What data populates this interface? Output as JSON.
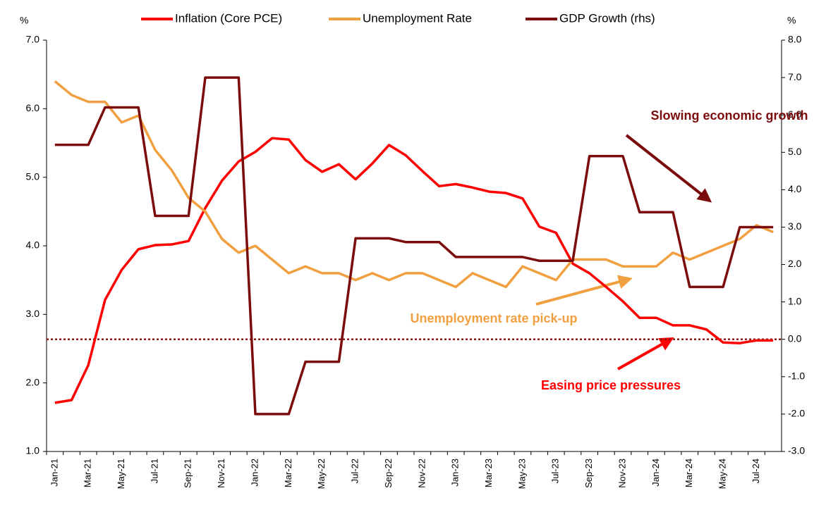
{
  "chart_data": {
    "type": "line",
    "ylabel": "%",
    "y2label": "%",
    "categories": [
      "Jan-21",
      null,
      "Mar-21",
      null,
      "May-21",
      null,
      "Jul-21",
      null,
      "Sep-21",
      null,
      "Nov-21",
      null,
      "Jan-22",
      null,
      "Mar-22",
      null,
      "May-22",
      null,
      "Jul-22",
      null,
      "Sep-22",
      null,
      "Nov-22",
      null,
      "Jan-23",
      null,
      "Mar-23",
      null,
      "May-23",
      null,
      "Jul-23",
      null,
      "Sep-23",
      null,
      "Nov-23",
      null,
      "Jan-24",
      null,
      "Mar-24",
      null,
      "May-24",
      null,
      "Jul-24",
      null
    ],
    "series": [
      {
        "name": "Inflation (Core PCE)",
        "color": "#ff0000",
        "axis": "y",
        "values": [
          1.71,
          1.75,
          2.26,
          3.21,
          3.65,
          3.95,
          4.01,
          4.02,
          4.07,
          4.55,
          4.95,
          5.23,
          5.37,
          5.57,
          5.55,
          5.25,
          5.08,
          5.19,
          4.97,
          5.2,
          5.47,
          5.32,
          5.09,
          4.87,
          4.9,
          4.85,
          4.79,
          4.77,
          4.69,
          4.28,
          4.19,
          3.74,
          3.6,
          3.4,
          3.19,
          2.95,
          2.95,
          2.84,
          2.84,
          2.78,
          2.59,
          2.58,
          2.62,
          2.62
        ]
      },
      {
        "name": "Unemployment Rate",
        "color": "#f0a040",
        "axis": "y",
        "values": [
          6.4,
          6.2,
          6.1,
          6.1,
          5.8,
          5.9,
          5.4,
          5.1,
          4.7,
          4.5,
          4.1,
          3.9,
          4.0,
          3.8,
          3.6,
          3.7,
          3.6,
          3.6,
          3.5,
          3.6,
          3.5,
          3.6,
          3.6,
          3.5,
          3.4,
          3.6,
          3.5,
          3.4,
          3.7,
          3.6,
          3.5,
          3.8,
          3.8,
          3.8,
          3.7,
          3.7,
          3.7,
          3.9,
          3.8,
          3.9,
          4.0,
          4.1,
          4.3,
          4.2
        ]
      },
      {
        "name": "GDP Growth (rhs)",
        "color": "#7b0c0c",
        "axis": "y2",
        "values": [
          5.2,
          5.2,
          5.2,
          6.2,
          6.2,
          6.2,
          3.3,
          3.3,
          3.3,
          7.0,
          7.0,
          7.0,
          -2.0,
          -2.0,
          -2.0,
          -0.6,
          -0.6,
          -0.6,
          2.7,
          2.7,
          2.7,
          2.6,
          2.6,
          2.6,
          2.2,
          2.2,
          2.2,
          2.2,
          2.2,
          2.1,
          2.1,
          2.1,
          4.9,
          4.9,
          4.9,
          3.4,
          3.4,
          3.4,
          1.4,
          1.4,
          1.4,
          3.0,
          3.0,
          3.0
        ]
      }
    ],
    "ylim": [
      1,
      7
    ],
    "yticks": [
      {
        "value": 1,
        "label": "1.0"
      },
      {
        "value": 2,
        "label": "2.0"
      },
      {
        "value": 3,
        "label": "3.0"
      },
      {
        "value": 4,
        "label": "4.0"
      },
      {
        "value": 5,
        "label": "5.0"
      },
      {
        "value": 6,
        "label": "6.0"
      },
      {
        "value": 7,
        "label": "7.0"
      }
    ],
    "y2lim": [
      -3,
      8
    ],
    "y2ticks": [
      {
        "value": -3,
        "label": "-3.0"
      },
      {
        "value": -2,
        "label": "-2.0"
      },
      {
        "value": -1,
        "label": "-1.0"
      },
      {
        "value": 0,
        "label": "0.0"
      },
      {
        "value": 1,
        "label": "1.0"
      },
      {
        "value": 2,
        "label": "2.0"
      },
      {
        "value": 3,
        "label": "3.0"
      },
      {
        "value": 4,
        "label": "4.0"
      },
      {
        "value": 5,
        "label": "5.0"
      },
      {
        "value": 6,
        "label": "6.0"
      },
      {
        "value": 7,
        "label": "7.0"
      },
      {
        "value": 8,
        "label": "8.0"
      }
    ],
    "reference_line": {
      "value": 0,
      "axis": "y2",
      "color": "#8b1a1a"
    },
    "legend": "top",
    "annotations": [
      {
        "text": "Slowing economic growth",
        "color": "#7b0c0c"
      },
      {
        "text": "Unemployment rate pick-up",
        "color": "#f0a040"
      },
      {
        "text": "Easing price pressures",
        "color": "#ff0000"
      }
    ]
  }
}
